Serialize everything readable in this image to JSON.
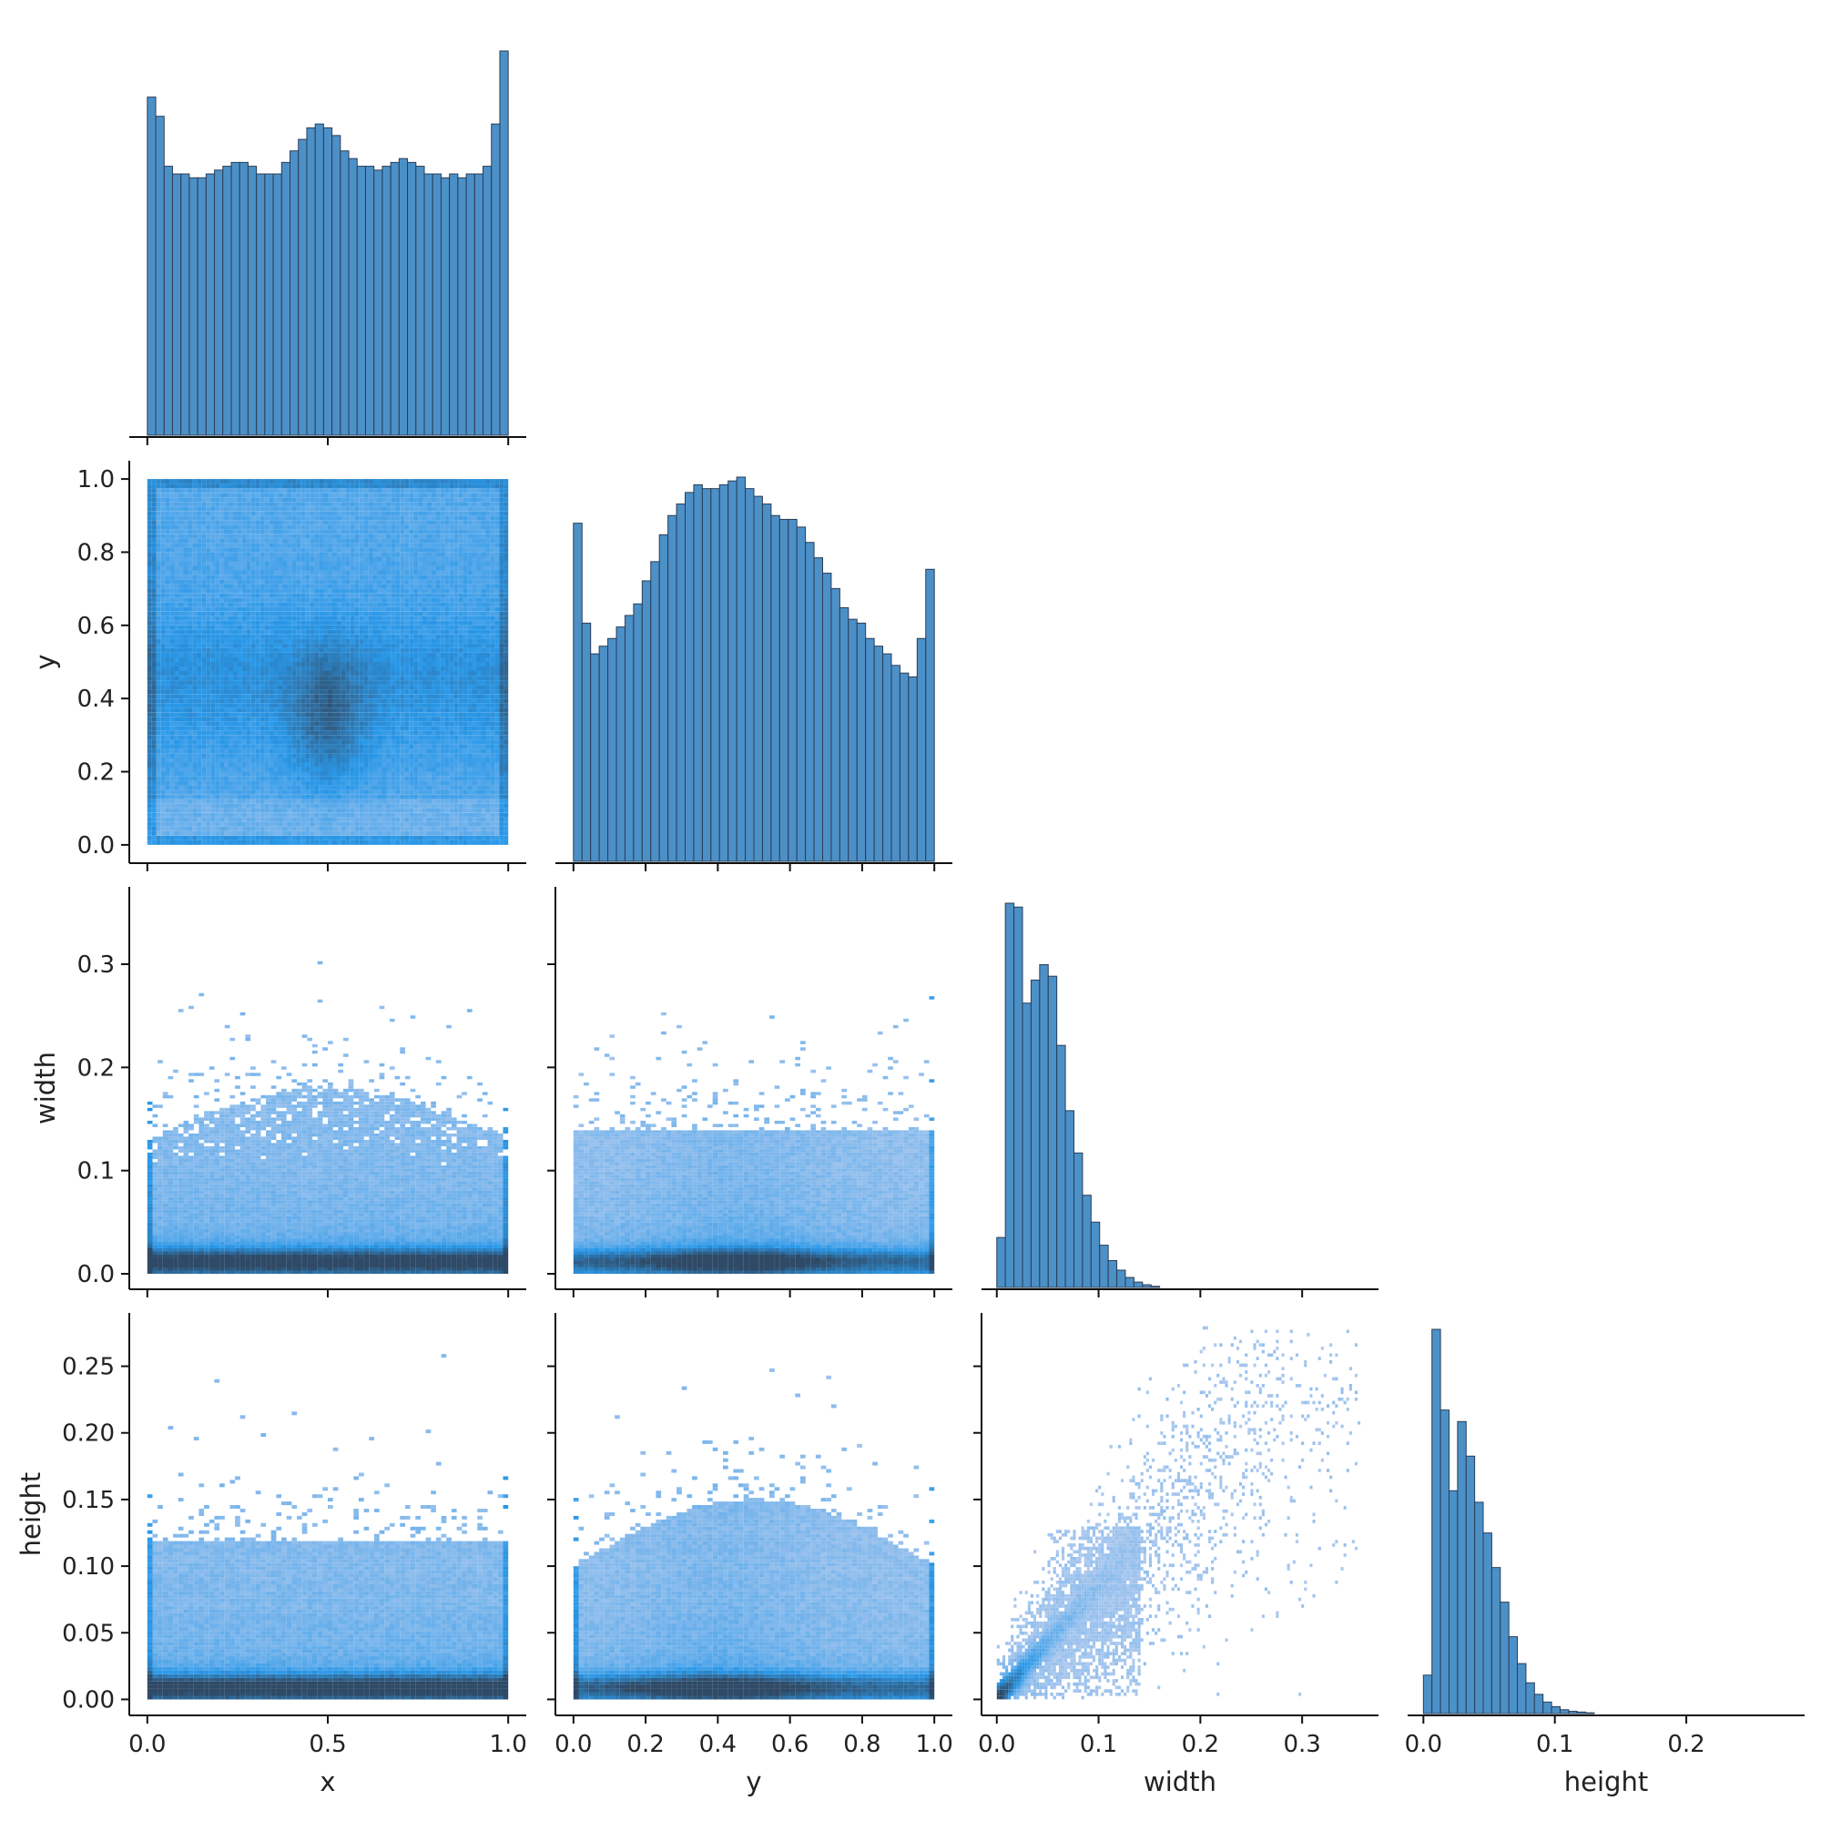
{
  "chart_data": {
    "type": "pairplot",
    "variables": [
      "x",
      "y",
      "width",
      "height"
    ],
    "layout": "corner",
    "color": "#1f77b4",
    "hist_fill": "#4c90c8",
    "hist_edge": "#2a3d55",
    "bivariate_colors": [
      "#aec9ee",
      "#2a98e8",
      "#2f4a66"
    ],
    "axes": {
      "x": {
        "label": "x",
        "lim": [
          -0.05,
          1.05
        ],
        "ticks": [
          0.0,
          0.5,
          1.0
        ],
        "tick_labels": [
          "0.0",
          "0.5",
          "1.0"
        ]
      },
      "y": {
        "label": "y",
        "lim": [
          -0.05,
          1.05
        ],
        "ticks": [
          0.0,
          0.2,
          0.4,
          0.6,
          0.8,
          1.0
        ],
        "tick_labels": [
          "0.0",
          "0.2",
          "0.4",
          "0.6",
          "0.8",
          "1.0"
        ]
      },
      "width": {
        "label": "width",
        "lim": [
          -0.015,
          0.375
        ],
        "ticks": [
          0.0,
          0.1,
          0.2,
          0.3
        ],
        "tick_labels": [
          "0.0",
          "0.1",
          "0.2",
          "0.3"
        ]
      },
      "height": {
        "label": "height",
        "lim": [
          -0.012,
          0.29
        ],
        "ticks": [
          0.0,
          0.05,
          0.1,
          0.15,
          0.2,
          0.25
        ],
        "tick_labels": [
          "0.00",
          "0.05",
          "0.10",
          "0.15",
          "0.20",
          "0.25"
        ],
        "diag_tick_labels": [
          "0.0",
          "0.1",
          "0.2"
        ],
        "diag_ticks": [
          0.0,
          0.1,
          0.2
        ]
      }
    },
    "histograms": {
      "x": {
        "range": [
          0,
          1
        ],
        "counts": [
          0.88,
          0.83,
          0.7,
          0.68,
          0.68,
          0.67,
          0.67,
          0.68,
          0.69,
          0.7,
          0.71,
          0.71,
          0.7,
          0.68,
          0.68,
          0.68,
          0.71,
          0.74,
          0.77,
          0.8,
          0.81,
          0.8,
          0.78,
          0.74,
          0.72,
          0.7,
          0.7,
          0.69,
          0.7,
          0.71,
          0.72,
          0.71,
          0.7,
          0.68,
          0.68,
          0.67,
          0.68,
          0.67,
          0.68,
          0.68,
          0.7,
          0.81,
          1.0
        ]
      },
      "y": {
        "range": [
          0,
          1
        ],
        "counts": [
          0.88,
          0.62,
          0.54,
          0.56,
          0.58,
          0.61,
          0.64,
          0.67,
          0.73,
          0.78,
          0.85,
          0.9,
          0.93,
          0.96,
          0.98,
          0.97,
          0.97,
          0.98,
          0.99,
          1.0,
          0.97,
          0.95,
          0.93,
          0.9,
          0.89,
          0.89,
          0.87,
          0.83,
          0.79,
          0.75,
          0.71,
          0.66,
          0.63,
          0.62,
          0.58,
          0.56,
          0.54,
          0.51,
          0.49,
          0.48,
          0.58,
          0.76
        ]
      },
      "width": {
        "range": [
          0,
          0.16
        ],
        "counts": [
          0.13,
          1.0,
          0.99,
          0.74,
          0.8,
          0.84,
          0.81,
          0.63,
          0.46,
          0.35,
          0.24,
          0.17,
          0.11,
          0.07,
          0.045,
          0.026,
          0.014,
          0.007,
          0.003
        ]
      },
      "height": {
        "range": [
          0,
          0.13
        ],
        "counts": [
          0.1,
          1.0,
          0.79,
          0.58,
          0.76,
          0.67,
          0.55,
          0.47,
          0.38,
          0.29,
          0.2,
          0.13,
          0.08,
          0.05,
          0.03,
          0.018,
          0.01,
          0.006,
          0.004,
          0.002
        ]
      }
    },
    "bivariate_panels": [
      {
        "x": "x",
        "y": "y",
        "kind": "hist2d"
      },
      {
        "x": "x",
        "y": "width",
        "kind": "hist2d"
      },
      {
        "x": "y",
        "y": "width",
        "kind": "hist2d"
      },
      {
        "x": "x",
        "y": "height",
        "kind": "hist2d"
      },
      {
        "x": "y",
        "y": "height",
        "kind": "hist2d"
      },
      {
        "x": "width",
        "y": "height",
        "kind": "hist2d"
      }
    ]
  }
}
